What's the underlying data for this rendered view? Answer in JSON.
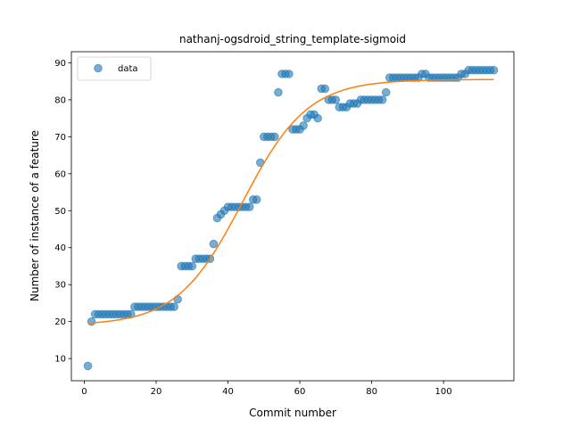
{
  "chart_data": {
    "type": "scatter",
    "title": "nathanj-ogsdroid_string_template-sigmoid",
    "xlabel": "Commit number",
    "ylabel": "Number of instance of a feature",
    "xlim": [
      -3.6,
      119.6
    ],
    "ylim": [
      4,
      93
    ],
    "xticks": [
      0,
      20,
      40,
      60,
      80,
      100
    ],
    "yticks": [
      10,
      20,
      30,
      40,
      50,
      60,
      70,
      80,
      90
    ],
    "grid": false,
    "legend_position": "top-left",
    "series": [
      {
        "name": "data",
        "kind": "scatter",
        "color": "#1f77b4",
        "points": [
          [
            1,
            8
          ],
          [
            2,
            20
          ],
          [
            3,
            22
          ],
          [
            4,
            22
          ],
          [
            5,
            22
          ],
          [
            6,
            22
          ],
          [
            7,
            22
          ],
          [
            8,
            22
          ],
          [
            9,
            22
          ],
          [
            10,
            22
          ],
          [
            11,
            22
          ],
          [
            12,
            22
          ],
          [
            13,
            22
          ],
          [
            14,
            24
          ],
          [
            15,
            24
          ],
          [
            16,
            24
          ],
          [
            17,
            24
          ],
          [
            18,
            24
          ],
          [
            19,
            24
          ],
          [
            20,
            24
          ],
          [
            21,
            24
          ],
          [
            22,
            24
          ],
          [
            23,
            24
          ],
          [
            24,
            24
          ],
          [
            25,
            24
          ],
          [
            26,
            26
          ],
          [
            27,
            35
          ],
          [
            28,
            35
          ],
          [
            29,
            35
          ],
          [
            30,
            35
          ],
          [
            31,
            37
          ],
          [
            32,
            37
          ],
          [
            33,
            37
          ],
          [
            34,
            37
          ],
          [
            35,
            37
          ],
          [
            36,
            41
          ],
          [
            37,
            48
          ],
          [
            38,
            49
          ],
          [
            39,
            50
          ],
          [
            40,
            51
          ],
          [
            41,
            51
          ],
          [
            42,
            51
          ],
          [
            43,
            51
          ],
          [
            44,
            51
          ],
          [
            45,
            51
          ],
          [
            46,
            51
          ],
          [
            47,
            53
          ],
          [
            48,
            53
          ],
          [
            49,
            63
          ],
          [
            50,
            70
          ],
          [
            51,
            70
          ],
          [
            52,
            70
          ],
          [
            53,
            70
          ],
          [
            54,
            82
          ],
          [
            55,
            87
          ],
          [
            56,
            87
          ],
          [
            57,
            87
          ],
          [
            58,
            72
          ],
          [
            59,
            72
          ],
          [
            60,
            72
          ],
          [
            61,
            73
          ],
          [
            62,
            75
          ],
          [
            63,
            76
          ],
          [
            64,
            76
          ],
          [
            65,
            75
          ],
          [
            66,
            83
          ],
          [
            67,
            83
          ],
          [
            68,
            80
          ],
          [
            69,
            80
          ],
          [
            70,
            80
          ],
          [
            71,
            78
          ],
          [
            72,
            78
          ],
          [
            73,
            78
          ],
          [
            74,
            79
          ],
          [
            75,
            79
          ],
          [
            76,
            79
          ],
          [
            77,
            80
          ],
          [
            78,
            80
          ],
          [
            79,
            80
          ],
          [
            80,
            80
          ],
          [
            81,
            80
          ],
          [
            82,
            80
          ],
          [
            83,
            80
          ],
          [
            84,
            82
          ],
          [
            85,
            86
          ],
          [
            86,
            86
          ],
          [
            87,
            86
          ],
          [
            88,
            86
          ],
          [
            89,
            86
          ],
          [
            90,
            86
          ],
          [
            91,
            86
          ],
          [
            92,
            86
          ],
          [
            93,
            86
          ],
          [
            94,
            87
          ],
          [
            95,
            87
          ],
          [
            96,
            86
          ],
          [
            97,
            86
          ],
          [
            98,
            86
          ],
          [
            99,
            86
          ],
          [
            100,
            86
          ],
          [
            101,
            86
          ],
          [
            102,
            86
          ],
          [
            103,
            86
          ],
          [
            104,
            86
          ],
          [
            105,
            87
          ],
          [
            106,
            87
          ],
          [
            107,
            88
          ],
          [
            108,
            88
          ],
          [
            109,
            88
          ],
          [
            110,
            88
          ],
          [
            111,
            88
          ],
          [
            112,
            88
          ],
          [
            113,
            88
          ],
          [
            114,
            88
          ]
        ]
      },
      {
        "name": "",
        "kind": "line",
        "color": "#ff7f0e",
        "sigmoid": {
          "lower": 19.0,
          "upper": 85.5,
          "midpoint": 44.0,
          "rate": 0.11
        },
        "x_start": 1,
        "x_end": 114
      }
    ]
  }
}
